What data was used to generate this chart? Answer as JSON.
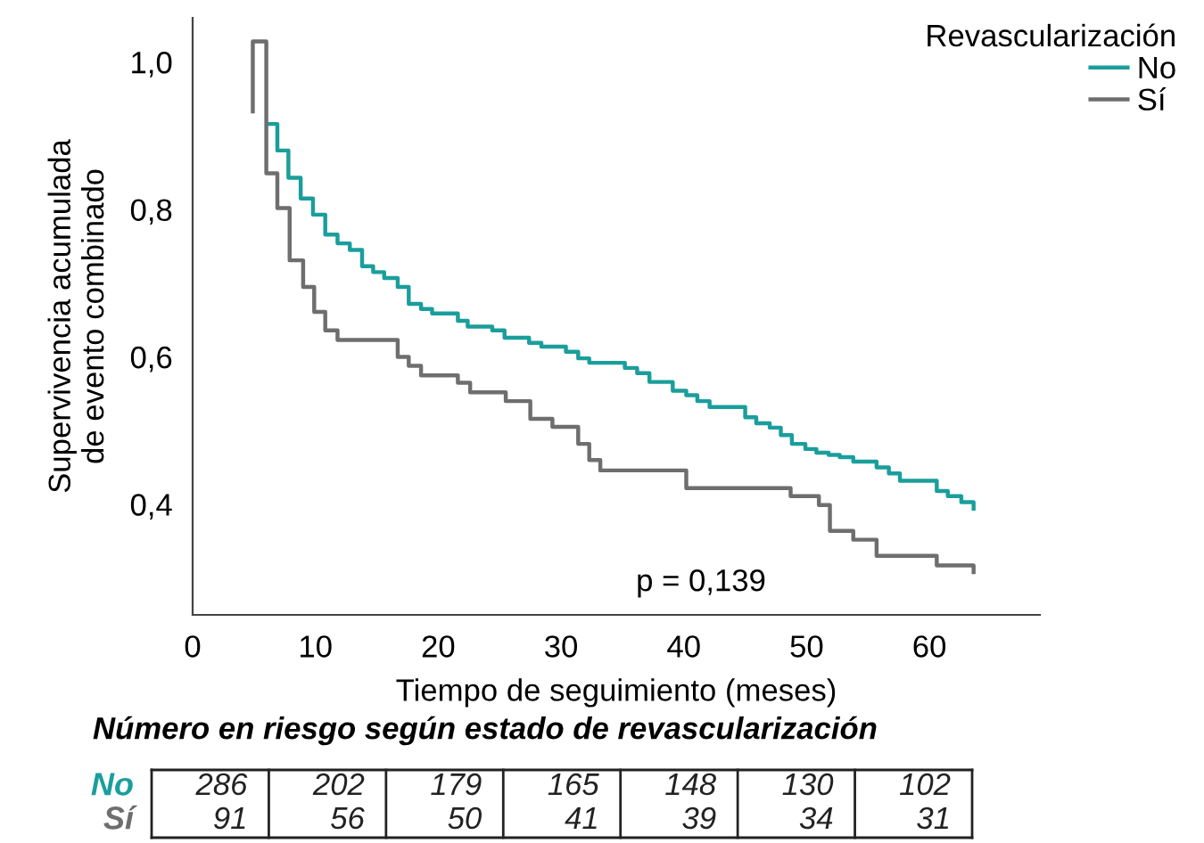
{
  "chart_data": {
    "type": "step",
    "xlabel": "Tiempo de seguimiento (meses)",
    "ylabel": "Supervivencia acumulada\nde evento combinado",
    "legend_title": "Revascularización",
    "legend": "top right",
    "grid": false,
    "xlim": [
      0,
      69
    ],
    "xticks": [
      0,
      10,
      20,
      30,
      40,
      50,
      60
    ],
    "ylim": [
      0.25,
      1.06
    ],
    "yticks": [
      {
        "value": 0.4,
        "label": "0,4"
      },
      {
        "value": 0.6,
        "label": "0,6"
      },
      {
        "value": 0.8,
        "label": "0,8"
      },
      {
        "value": 1.0,
        "label": "1,0"
      }
    ],
    "series": [
      {
        "name": "No",
        "color": "#1a9e9c",
        "x": [
          6.2,
          6.9,
          7.8,
          8.8,
          9.8,
          10.8,
          11.8,
          12.8,
          13.8,
          14.7,
          15.6,
          16.7,
          17.6,
          18.6,
          19.5,
          21.6,
          22.4,
          24.4,
          25.4,
          27.4,
          28.4,
          30.4,
          31.4,
          32.3,
          35.2,
          36.2,
          37.2,
          39.1,
          40.2,
          41.1,
          42.1,
          45.0,
          45.9,
          47.0,
          47.9,
          48.8,
          49.9,
          50.8,
          51.8,
          52.7,
          53.8,
          55.7,
          56.7,
          57.6,
          60.6,
          61.5,
          62.6,
          63.6
        ],
        "values": [
          0.916,
          0.88,
          0.843,
          0.815,
          0.793,
          0.766,
          0.754,
          0.745,
          0.723,
          0.715,
          0.707,
          0.695,
          0.672,
          0.665,
          0.659,
          0.649,
          0.641,
          0.636,
          0.626,
          0.619,
          0.614,
          0.607,
          0.598,
          0.592,
          0.585,
          0.578,
          0.566,
          0.554,
          0.548,
          0.54,
          0.532,
          0.518,
          0.51,
          0.504,
          0.494,
          0.482,
          0.475,
          0.47,
          0.467,
          0.464,
          0.458,
          0.45,
          0.442,
          0.432,
          0.418,
          0.411,
          0.403,
          0.394
        ]
      },
      {
        "name": "Sí",
        "color": "#6e6e6e",
        "x": [
          4.9,
          4.9,
          6.0,
          6.9,
          7.9,
          9.0,
          9.9,
          10.8,
          11.8,
          16.7,
          17.6,
          18.6,
          21.6,
          22.6,
          25.5,
          27.5,
          29.3,
          31.4,
          32.3,
          33.2,
          40.2,
          48.7,
          51.0,
          51.9,
          53.8,
          55.7,
          60.6,
          63.6
        ],
        "values": [
          0.933,
          1.028,
          0.849,
          0.802,
          0.731,
          0.695,
          0.661,
          0.636,
          0.623,
          0.6,
          0.588,
          0.575,
          0.565,
          0.552,
          0.54,
          0.516,
          0.505,
          0.482,
          0.46,
          0.446,
          0.422,
          0.411,
          0.399,
          0.364,
          0.352,
          0.33,
          0.317,
          0.308
        ]
      }
    ],
    "annotations": [
      "p = 0,139",
      "Número en riesgo según estado de revascularización",
      "No",
      "286",
      "202",
      "179",
      "165",
      "148",
      "130",
      "102",
      "Sí",
      "91",
      "56",
      "50",
      "41",
      "39",
      "34",
      "31"
    ]
  }
}
